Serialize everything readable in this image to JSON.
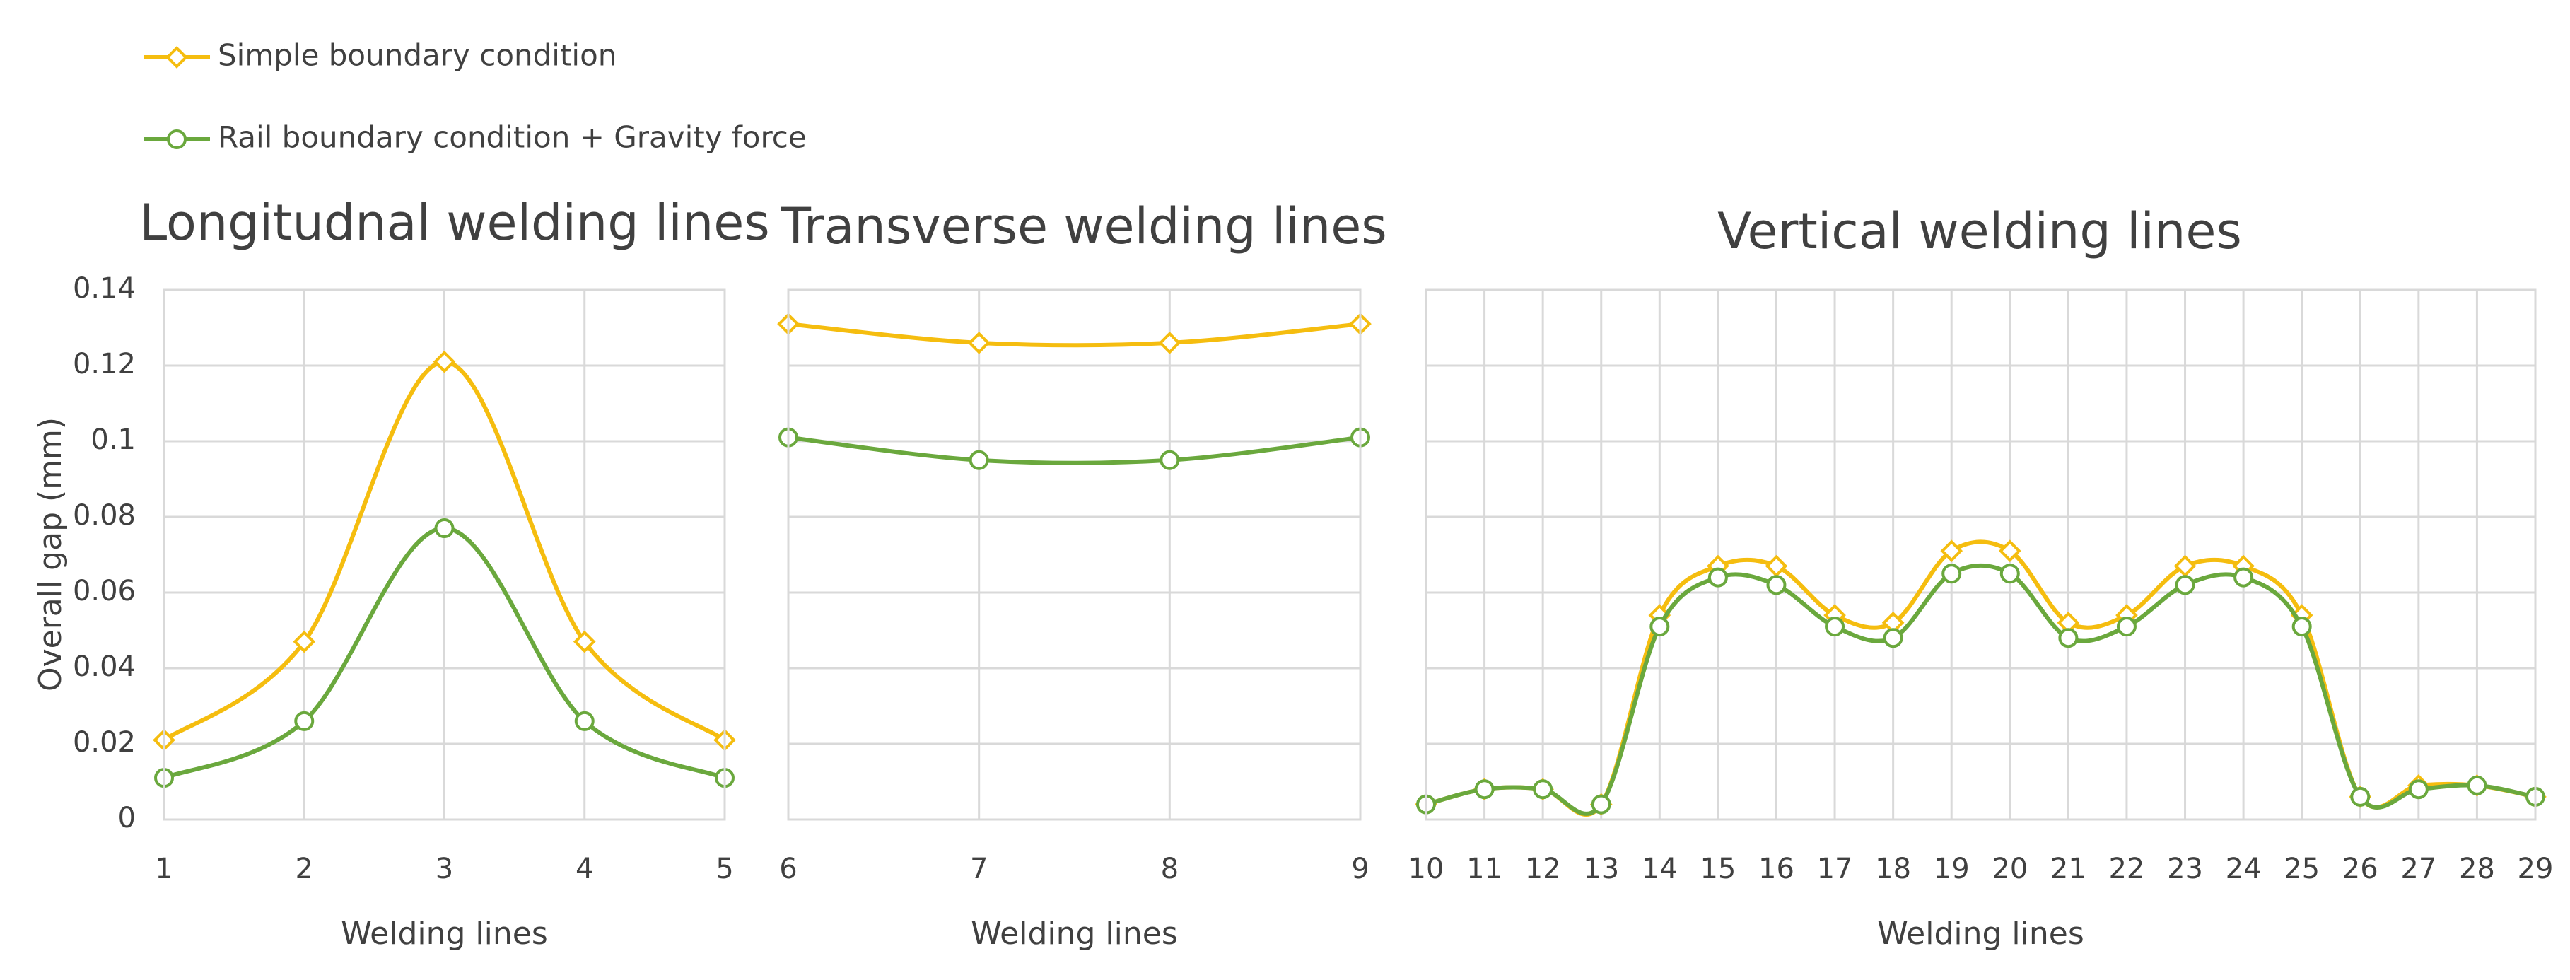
{
  "chart_data": [
    {
      "type": "line",
      "title": "Longitudnal welding lines",
      "x_label": "Welding lines",
      "y_label": "Overall gap (mm)",
      "categories": [
        "1",
        "2",
        "3",
        "4",
        "5"
      ],
      "ylim": [
        0,
        0.14
      ],
      "yticks": [
        0,
        0.02,
        0.04,
        0.06,
        0.08,
        0.1,
        0.12,
        0.14
      ],
      "ytick_labels": true,
      "grid": true,
      "smooth": true,
      "series": [
        {
          "name": "Simple boundary condition",
          "color": "#f5bd0f",
          "marker": "diamond",
          "values": [
            0.021,
            0.047,
            0.121,
            0.047,
            0.021
          ]
        },
        {
          "name": "Rail boundary condition + Gravity force",
          "color": "#6aa83d",
          "marker": "circle",
          "values": [
            0.011,
            0.026,
            0.077,
            0.026,
            0.011
          ]
        }
      ]
    },
    {
      "type": "line",
      "title": "Transverse welding lines",
      "x_label": "Welding lines",
      "categories": [
        "6",
        "7",
        "8",
        "9"
      ],
      "ylim": [
        0,
        0.14
      ],
      "yticks": [
        0,
        0.02,
        0.04,
        0.06,
        0.08,
        0.1,
        0.12,
        0.14
      ],
      "ytick_labels": false,
      "grid": true,
      "smooth": true,
      "series": [
        {
          "color": "#f5bd0f",
          "marker": "diamond",
          "values": [
            0.131,
            0.126,
            0.126,
            0.131
          ]
        },
        {
          "color": "#6aa83d",
          "marker": "circle",
          "values": [
            0.101,
            0.095,
            0.095,
            0.101
          ]
        }
      ]
    },
    {
      "type": "line",
      "title": "Vertical welding lines",
      "x_label": "Welding lines",
      "categories": [
        "10",
        "11",
        "12",
        "13",
        "14",
        "15",
        "16",
        "17",
        "18",
        "19",
        "20",
        "21",
        "22",
        "23",
        "24",
        "25",
        "26",
        "27",
        "28",
        "29"
      ],
      "ylim": [
        0,
        0.14
      ],
      "yticks": [
        0,
        0.02,
        0.04,
        0.06,
        0.08,
        0.1,
        0.12,
        0.14
      ],
      "ytick_labels": false,
      "grid": true,
      "smooth": true,
      "series": [
        {
          "color": "#f5bd0f",
          "marker": "diamond",
          "values": [
            0.004,
            0.008,
            0.008,
            0.004,
            0.054,
            0.067,
            0.067,
            0.054,
            0.052,
            0.071,
            0.071,
            0.052,
            0.054,
            0.067,
            0.067,
            0.054,
            0.006,
            0.009,
            0.009,
            0.006
          ]
        },
        {
          "color": "#6aa83d",
          "marker": "circle",
          "values": [
            0.004,
            0.008,
            0.008,
            0.004,
            0.051,
            0.064,
            0.062,
            0.051,
            0.048,
            0.065,
            0.065,
            0.048,
            0.051,
            0.062,
            0.064,
            0.051,
            0.006,
            0.008,
            0.009,
            0.006
          ]
        }
      ]
    }
  ]
}
